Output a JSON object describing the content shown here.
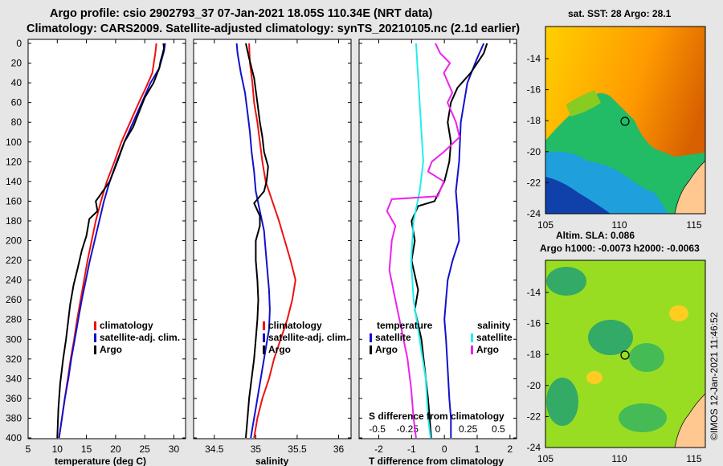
{
  "header": {
    "line1": "Argo profile: csio 2902793_37 07-Jan-2021 18.05S 110.34E (NRT data)",
    "line2": "Climatology: CARS2009. Satellite-adjusted climatology: synTS_20210105.nc (2.1d earlier)"
  },
  "colors": {
    "climatology": "#ee1111",
    "satellite": "#1111cc",
    "argo": "#000000",
    "cyan": "#22eeee",
    "magenta": "#ee22ee"
  },
  "depth_ticks": [
    "0",
    "20",
    "40",
    "60",
    "80",
    "100",
    "120",
    "140",
    "160",
    "180",
    "200",
    "220",
    "240",
    "260",
    "280",
    "300",
    "320",
    "340",
    "360",
    "380",
    "400"
  ],
  "chart_data": [
    {
      "type": "line",
      "name": "temperature",
      "xlabel": "temperature (deg C)",
      "ylabel": "depth",
      "xlim": [
        5,
        32
      ],
      "ylim": [
        400,
        0
      ],
      "xticks": [
        "5",
        "10",
        "15",
        "20",
        "25",
        "30"
      ],
      "legend": [
        "climatology",
        "satellite-adj. clim.",
        "Argo"
      ],
      "series": [
        {
          "name": "climatology",
          "color": "#ee1111",
          "points": [
            [
              27,
              0
            ],
            [
              26.8,
              10
            ],
            [
              26.3,
              30
            ],
            [
              25.2,
              45
            ],
            [
              24,
              60
            ],
            [
              22.5,
              80
            ],
            [
              21,
              100
            ],
            [
              19.8,
              120
            ],
            [
              18.5,
              140
            ],
            [
              17.5,
              160
            ],
            [
              16.6,
              180
            ],
            [
              15.9,
              200
            ],
            [
              15.2,
              220
            ],
            [
              14.6,
              240
            ],
            [
              14,
              260
            ],
            [
              13.4,
              280
            ],
            [
              12.9,
              300
            ],
            [
              12.3,
              320
            ],
            [
              11.8,
              340
            ],
            [
              11.3,
              360
            ],
            [
              10.8,
              380
            ],
            [
              10.3,
              400
            ]
          ]
        },
        {
          "name": "satellite-adj. clim.",
          "color": "#1111cc",
          "points": [
            [
              28.5,
              0
            ],
            [
              28.3,
              8
            ],
            [
              27.5,
              25
            ],
            [
              26,
              40
            ],
            [
              24.5,
              60
            ],
            [
              23,
              80
            ],
            [
              21.5,
              100
            ],
            [
              20.2,
              120
            ],
            [
              19,
              140
            ],
            [
              18,
              160
            ],
            [
              17.2,
              180
            ],
            [
              16.4,
              200
            ],
            [
              15.6,
              220
            ],
            [
              14.9,
              240
            ],
            [
              14.2,
              260
            ],
            [
              13.6,
              280
            ],
            [
              13,
              300
            ],
            [
              12.4,
              320
            ],
            [
              11.9,
              340
            ],
            [
              11.3,
              360
            ],
            [
              10.8,
              380
            ],
            [
              10.3,
              400
            ]
          ]
        },
        {
          "name": "Argo",
          "color": "#000000",
          "points": [
            [
              28.2,
              0
            ],
            [
              28.3,
              5
            ],
            [
              28,
              12
            ],
            [
              27.7,
              18
            ],
            [
              27.5,
              25
            ],
            [
              26.5,
              40
            ],
            [
              25,
              55
            ],
            [
              24,
              70
            ],
            [
              23,
              85
            ],
            [
              21.5,
              100
            ],
            [
              20.3,
              120
            ],
            [
              19,
              140
            ],
            [
              17.2,
              155
            ],
            [
              16.6,
              160
            ],
            [
              16.9,
              170
            ],
            [
              15.5,
              178
            ],
            [
              15,
              195
            ],
            [
              14.2,
              210
            ],
            [
              13.5,
              228
            ],
            [
              12.8,
              245
            ],
            [
              12.2,
              265
            ],
            [
              11.8,
              285
            ],
            [
              11.5,
              300
            ],
            [
              11,
              320
            ],
            [
              10.5,
              345
            ],
            [
              10.2,
              370
            ],
            [
              10,
              400
            ]
          ]
        }
      ]
    },
    {
      "type": "line",
      "name": "salinity",
      "xlabel": "salinity",
      "ylabel": "depth",
      "xlim": [
        34.25,
        36.15
      ],
      "ylim": [
        400,
        0
      ],
      "xticks": [
        "34.5",
        "35",
        "35.5",
        "36"
      ],
      "legend": [
        "climatology",
        "satellite-adj. clim.",
        "Argo"
      ],
      "series": [
        {
          "name": "climatology",
          "color": "#ee1111",
          "points": [
            [
              34.92,
              0
            ],
            [
              34.93,
              20
            ],
            [
              34.96,
              40
            ],
            [
              34.98,
              60
            ],
            [
              35.02,
              80
            ],
            [
              35.05,
              100
            ],
            [
              35.08,
              120
            ],
            [
              35.12,
              140
            ],
            [
              35.2,
              160
            ],
            [
              35.28,
              180
            ],
            [
              35.35,
              200
            ],
            [
              35.42,
              220
            ],
            [
              35.48,
              240
            ],
            [
              35.44,
              260
            ],
            [
              35.38,
              280
            ],
            [
              35.3,
              300
            ],
            [
              35.22,
              320
            ],
            [
              35.16,
              340
            ],
            [
              35.08,
              360
            ],
            [
              35.02,
              380
            ],
            [
              34.98,
              400
            ]
          ]
        },
        {
          "name": "satellite-adj. clim.",
          "color": "#1111cc",
          "points": [
            [
              34.77,
              0
            ],
            [
              34.78,
              10
            ],
            [
              34.82,
              30
            ],
            [
              34.87,
              50
            ],
            [
              34.9,
              70
            ],
            [
              34.93,
              90
            ],
            [
              34.95,
              110
            ],
            [
              34.98,
              130
            ],
            [
              35,
              150
            ],
            [
              35.05,
              170
            ],
            [
              35.1,
              190
            ],
            [
              35.12,
              210
            ],
            [
              35.14,
              230
            ],
            [
              35.16,
              250
            ],
            [
              35.17,
              270
            ],
            [
              35.16,
              290
            ],
            [
              35.12,
              310
            ],
            [
              35.08,
              330
            ],
            [
              35.04,
              350
            ],
            [
              35.0,
              370
            ],
            [
              34.96,
              390
            ],
            [
              34.94,
              400
            ]
          ]
        },
        {
          "name": "Argo",
          "color": "#000000",
          "points": [
            [
              34.88,
              0
            ],
            [
              34.92,
              15
            ],
            [
              34.98,
              35
            ],
            [
              35.02,
              60
            ],
            [
              35.05,
              80
            ],
            [
              35.08,
              95
            ],
            [
              35.1,
              110
            ],
            [
              35.15,
              125
            ],
            [
              35.13,
              140
            ],
            [
              35.1,
              150
            ],
            [
              34.98,
              162
            ],
            [
              35.05,
              175
            ],
            [
              35.05,
              185
            ],
            [
              35.0,
              200
            ],
            [
              35,
              220
            ],
            [
              35.02,
              240
            ],
            [
              35.03,
              260
            ],
            [
              35.02,
              280
            ],
            [
              35.0,
              300
            ],
            [
              34.98,
              320
            ],
            [
              34.95,
              340
            ],
            [
              34.92,
              360
            ],
            [
              34.9,
              380
            ],
            [
              34.88,
              400
            ]
          ]
        }
      ]
    },
    {
      "type": "line",
      "name": "difference from climatology",
      "xlabel": "T difference from climatology",
      "xlabel_top": "S difference from climatology",
      "ylabel": "depth",
      "xlim": [
        -2.6,
        2.2
      ],
      "ylim": [
        400,
        0
      ],
      "xticks": [
        "-2",
        "-1",
        "0",
        "1",
        "2"
      ],
      "xticks_top": [
        "-0.5",
        "-0.25",
        "0",
        "0.25",
        "0.5"
      ],
      "legend_temperature": {
        "title": "temperature",
        "items": [
          "satellite",
          "Argo"
        ]
      },
      "legend_salinity": {
        "title": "salinity",
        "items": [
          "satellite",
          "Argo"
        ]
      },
      "series": [
        {
          "name": "temperature satellite",
          "color": "#1111cc",
          "points": [
            [
              1.2,
              0
            ],
            [
              1.0,
              15
            ],
            [
              0.7,
              40
            ],
            [
              0.5,
              80
            ],
            [
              0.45,
              120
            ],
            [
              0.35,
              150
            ],
            [
              0.4,
              170
            ],
            [
              0.45,
              200
            ],
            [
              0.25,
              220
            ],
            [
              0.1,
              240
            ],
            [
              0.05,
              260
            ],
            [
              0.0,
              280
            ],
            [
              0.05,
              300
            ],
            [
              0.1,
              330
            ],
            [
              0.15,
              360
            ],
            [
              0.2,
              380
            ],
            [
              0.2,
              400
            ]
          ]
        },
        {
          "name": "temperature Argo",
          "color": "#000000",
          "points": [
            [
              1.3,
              0
            ],
            [
              1.2,
              10
            ],
            [
              0.8,
              30
            ],
            [
              0.4,
              45
            ],
            [
              0.2,
              60
            ],
            [
              0.1,
              80
            ],
            [
              0.2,
              100
            ],
            [
              0.15,
              120
            ],
            [
              0.0,
              140
            ],
            [
              -0.3,
              160
            ],
            [
              -0.8,
              165
            ],
            [
              -1,
              180
            ],
            [
              -0.9,
              200
            ],
            [
              -1.0,
              220
            ],
            [
              -0.8,
              250
            ],
            [
              -0.9,
              270
            ],
            [
              -0.7,
              300
            ],
            [
              -0.6,
              330
            ],
            [
              -0.5,
              360
            ],
            [
              -0.45,
              380
            ],
            [
              -0.4,
              400
            ]
          ]
        },
        {
          "name": "salinity satellite",
          "color": "#22eeee",
          "points": [
            [
              -0.18,
              0
            ],
            [
              -0.16,
              40
            ],
            [
              -0.14,
              80
            ],
            [
              -0.12,
              120
            ],
            [
              -0.15,
              150
            ],
            [
              -0.2,
              180
            ],
            [
              -0.22,
              220
            ],
            [
              -0.2,
              260
            ],
            [
              -0.15,
              300
            ],
            [
              -0.1,
              340
            ],
            [
              -0.08,
              380
            ],
            [
              -0.06,
              400
            ]
          ]
        },
        {
          "name": "salinity Argo",
          "color": "#ee22ee",
          "points": [
            [
              -0.02,
              0
            ],
            [
              0.02,
              10
            ],
            [
              0.1,
              20
            ],
            [
              0.05,
              30
            ],
            [
              0.12,
              50
            ],
            [
              0.08,
              60
            ],
            [
              0.15,
              80
            ],
            [
              0.18,
              95
            ],
            [
              0.05,
              110
            ],
            [
              -0.05,
              120
            ],
            [
              -0.08,
              130
            ],
            [
              0.05,
              140
            ],
            [
              0.0,
              155
            ],
            [
              -0.38,
              158
            ],
            [
              -0.42,
              170
            ],
            [
              -0.35,
              185
            ],
            [
              -0.38,
              200
            ],
            [
              -0.4,
              230
            ],
            [
              -0.35,
              260
            ],
            [
              -0.3,
              290
            ],
            [
              -0.25,
              320
            ],
            [
              -0.22,
              350
            ],
            [
              -0.2,
              380
            ],
            [
              -0.18,
              400
            ]
          ]
        }
      ]
    }
  ],
  "maps": {
    "top": {
      "title": "sat. SST: 28 Argo: 28.1",
      "yticks": [
        "-14",
        "-16",
        "-18",
        "-20",
        "-22",
        "-24"
      ],
      "xticks": [
        "105",
        "110",
        "115"
      ]
    },
    "bottom": {
      "title_line1": "Altim. SLA: 0.086",
      "title_line2": "Argo h1000: -0.0073 h2000: -0.0063",
      "yticks": [
        "-14",
        "-16",
        "-18",
        "-20",
        "-22",
        "-24"
      ],
      "xticks": [
        "105",
        "110",
        "115"
      ]
    }
  },
  "footer": {
    "credit": "©IMOS 12-Jan-2021 11:46:52"
  }
}
